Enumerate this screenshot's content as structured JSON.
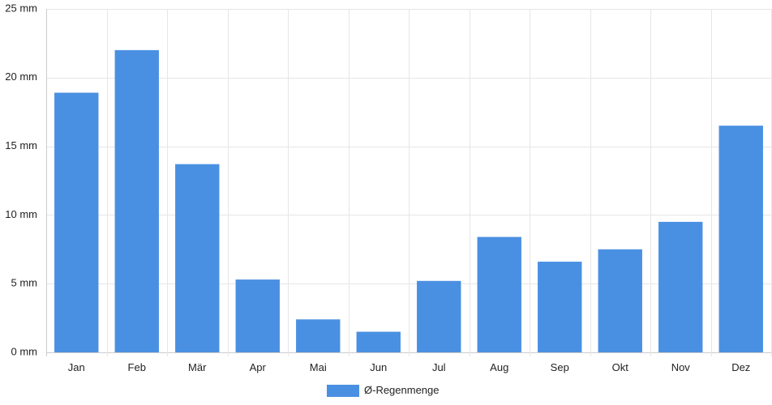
{
  "chart_data": {
    "type": "bar",
    "categories": [
      "Jan",
      "Feb",
      "Mär",
      "Apr",
      "Mai",
      "Jun",
      "Jul",
      "Aug",
      "Sep",
      "Okt",
      "Nov",
      "Dez"
    ],
    "series": [
      {
        "name": "Ø-Regenmenge",
        "values": [
          18.9,
          22.0,
          13.7,
          5.3,
          2.4,
          1.5,
          5.2,
          8.4,
          6.6,
          7.5,
          9.5,
          16.5
        ],
        "color": "#4a90e2"
      }
    ],
    "ylim": [
      0,
      25
    ],
    "yticks": [
      0,
      5,
      10,
      15,
      20,
      25
    ],
    "ytick_labels": [
      "0 mm",
      "5 mm",
      "10 mm",
      "15 mm",
      "20 mm",
      "25 mm"
    ],
    "title": "",
    "xlabel": "",
    "ylabel": "",
    "grid": true,
    "legend_position": "bottom-center"
  }
}
